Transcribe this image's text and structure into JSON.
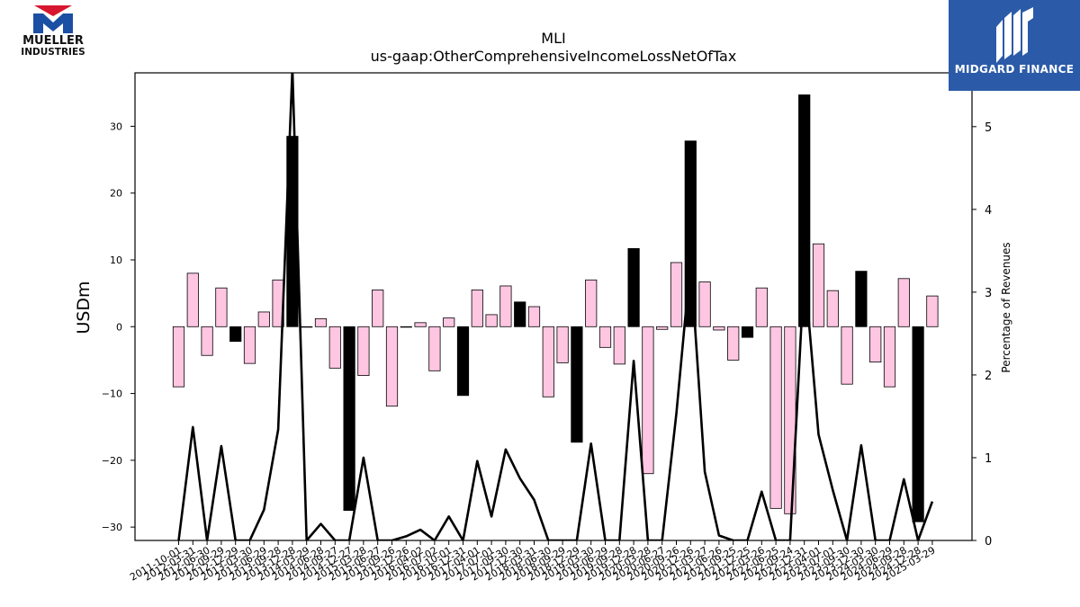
{
  "chart_data": {
    "type": "bar",
    "title": "MLI",
    "subtitle": "us-gaap:OtherComprehensiveIncomeLossNetOfTax",
    "ylabel": "USDm",
    "y2label": "Percentage of Revenues",
    "ylim": [
      -32,
      38
    ],
    "y2lim": [
      0,
      5.65
    ],
    "yticks": [
      -30,
      -20,
      -10,
      0,
      10,
      20,
      30
    ],
    "y2ticks": [
      0,
      1,
      2,
      3,
      4,
      5
    ],
    "grid": false,
    "categories": [
      "2011-10-01",
      "2012-03-31",
      "2012-06-30",
      "2012-09-29",
      "2012-12-29",
      "2013-03-30",
      "2013-06-29",
      "2013-09-28",
      "2013-12-28",
      "2014-03-29",
      "2014-06-28",
      "2014-09-27",
      "2014-12-27",
      "2015-03-28",
      "2015-06-27",
      "2015-09-26",
      "2015-12-26",
      "2016-04-02",
      "2016-07-02",
      "2016-10-01",
      "2016-12-31",
      "2017-04-01",
      "2017-07-01",
      "2017-09-30",
      "2017-12-30",
      "2018-03-31",
      "2018-06-30",
      "2018-09-29",
      "2018-12-29",
      "2019-03-30",
      "2019-06-29",
      "2019-09-28",
      "2019-12-28",
      "2020-03-28",
      "2020-06-27",
      "2020-09-26",
      "2020-12-26",
      "2021-03-27",
      "2021-06-26",
      "2021-09-25",
      "2021-12-25",
      "2022-03-26",
      "2022-06-25",
      "2022-09-24",
      "2022-12-31",
      "2023-04-01",
      "2023-07-01",
      "2023-09-30",
      "2023-12-30",
      "2024-03-30",
      "2024-06-29",
      "2024-09-28",
      "2024-12-28",
      "2025-03-29"
    ],
    "x_ticks_shown": [
      "2011-10-01",
      "2012-03-31",
      "2012-06-30",
      "2012-09-29",
      "2012-12-29",
      "2013-03-30",
      "2013-06-29",
      "2013-09-28",
      "2013-12-28",
      "2014-03-29",
      "2014-06-28",
      "2014-09-27",
      "2014-12-27",
      "2015-03-28",
      "2015-06-27",
      "2015-09-26",
      "2015-12-26",
      "2016-04-02",
      "2016-07-02",
      "2016-10-01",
      "2016-12-31",
      "2017-04-01",
      "2017-07-01",
      "2017-09-30",
      "2017-12-30",
      "2018-03-31",
      "2018-06-30",
      "2018-09-29",
      "2018-12-29",
      "2019-03-30",
      "2019-06-29",
      "2019-09-28",
      "2019-12-28",
      "2020-03-28",
      "2020-06-27",
      "2020-09-26",
      "2020-12-26",
      "2021-03-27",
      "2021-06-26",
      "2021-09-25",
      "2021-12-25",
      "2022-03-26",
      "2022-06-25",
      "2022-09-24",
      "2022-12-31",
      "2023-04-01",
      "2023-07-01",
      "2023-09-30",
      "2023-12-30",
      "2024-03-30",
      "2024-06-29",
      "2024-09-28",
      "2024-12-28",
      "2025-03-29"
    ],
    "series": [
      {
        "axis": "left",
        "kind": "bar",
        "values": [
          -9.0,
          8.0,
          -4.3,
          5.8,
          -2.2,
          -5.5,
          2.2,
          7.0,
          28.5,
          0.0,
          1.2,
          -6.2,
          -27.5,
          -7.3,
          5.5,
          -11.9,
          0.0,
          0.6,
          -6.6,
          1.3,
          -10.3,
          5.5,
          1.8,
          6.1,
          3.7,
          3.0,
          -10.5,
          -5.4,
          -17.3,
          7.0,
          -3.1,
          -5.6,
          11.7,
          -22.0,
          -0.4,
          9.6,
          27.8,
          6.7,
          -0.5,
          -5.0,
          -1.6,
          5.8,
          -27.2,
          -28.0,
          34.7,
          12.4,
          5.4,
          -8.6,
          8.3,
          -5.3,
          -9.0,
          7.2,
          -29.2,
          4.6
        ],
        "annual": [
          false,
          false,
          false,
          false,
          true,
          false,
          false,
          false,
          true,
          false,
          false,
          false,
          true,
          false,
          false,
          false,
          false,
          false,
          false,
          false,
          true,
          false,
          false,
          false,
          true,
          false,
          false,
          false,
          true,
          false,
          false,
          false,
          true,
          false,
          false,
          false,
          true,
          false,
          false,
          false,
          true,
          false,
          false,
          false,
          true,
          false,
          false,
          false,
          true,
          false,
          false,
          false,
          true,
          false
        ],
        "colors": {
          "quarter": "#ffc6e2",
          "annual": "#000000"
        }
      },
      {
        "axis": "right",
        "kind": "line",
        "color": "#000000",
        "values": [
          0,
          1.37,
          0,
          1.14,
          0,
          0,
          0.37,
          1.34,
          5.7,
          0,
          0.2,
          0,
          0,
          1.0,
          0,
          0,
          0.05,
          0.13,
          0,
          0.29,
          0,
          0.96,
          0.29,
          1.1,
          0.75,
          0.49,
          0,
          0,
          0,
          1.17,
          0,
          0,
          2.17,
          0,
          0,
          1.53,
          3.38,
          0.83,
          0.06,
          0,
          0,
          0.59,
          0,
          0,
          3.29,
          1.28,
          0.61,
          0,
          1.15,
          0,
          0,
          0.74,
          0,
          0.47
        ]
      }
    ]
  },
  "logos": {
    "left_line1": "MUELLER",
    "left_line2": "INDUSTRIES",
    "right_brand": "MIDGARD FINANCE",
    "left_red": "#d7172f",
    "left_blue": "#1b4fa3",
    "right_bg": "#2b5ba8"
  }
}
